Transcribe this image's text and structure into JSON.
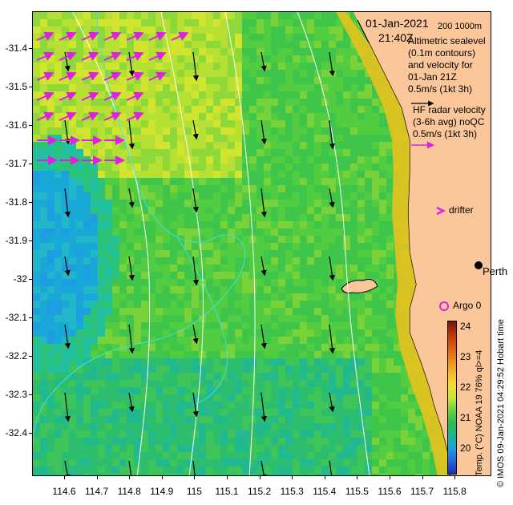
{
  "header": {
    "date": "01-Jan-2021",
    "time": "21:40Z",
    "scale_label": "200 1000m"
  },
  "legend": {
    "altimetry_lines": [
      "Altimetric sealevel",
      "(0.1m contours)",
      "and velocity for",
      "01-Jan 21Z",
      "0.5m/s (1kt 3h)"
    ],
    "hf_lines": [
      "HF radar velocity",
      "(3-6h avg) noQC",
      "0.5m/s (1kt 3h)"
    ],
    "drifter_label": "drifter",
    "argo_label": "Argo 0",
    "city_label": "Perth"
  },
  "y_axis": {
    "labels": [
      "-31.4",
      "-31.5",
      "-31.6",
      "-31.7",
      "-31.8",
      "-31.9",
      "-32",
      "-32.1",
      "-32.2",
      "-32.3",
      "-32.4"
    ]
  },
  "x_axis": {
    "labels": [
      "114.6",
      "114.7",
      "114.8",
      "114.9",
      "115",
      "115.1",
      "115.2",
      "115.3",
      "115.4",
      "115.5",
      "115.6",
      "115.7",
      "115.8"
    ]
  },
  "colorbar": {
    "labels": [
      "24",
      "23",
      "22",
      "21",
      "20"
    ],
    "title": "Temp. (°C) NOAA 19 76% ql>=4"
  },
  "credit": "© IMOS 09-Jan-2021 04:29:52 Hobart time",
  "colors": {
    "land": "#fbc79a",
    "hf_arrow": "#e020e0",
    "contour": "#ffffff",
    "bathy": "#40e0e0"
  }
}
